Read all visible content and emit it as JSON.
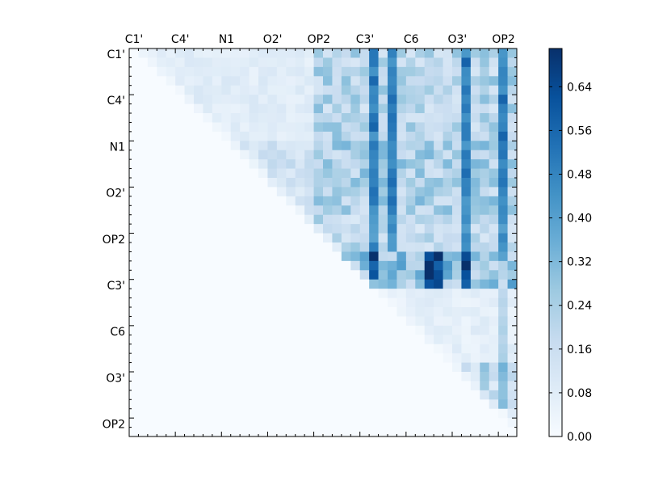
{
  "chart_data": {
    "type": "heatmap",
    "title": "",
    "xlabel": "",
    "ylabel": "",
    "x_tick_labels": [
      "C1'",
      "C4'",
      "N1",
      "O2'",
      "OP2",
      "C3'",
      "C6",
      "O3'",
      "OP2"
    ],
    "y_tick_labels": [
      "C1'",
      "C4'",
      "N1",
      "O2'",
      "OP2",
      "C3'",
      "C6",
      "O3'",
      "OP2"
    ],
    "matrix_size": 42,
    "upper_triangular": true,
    "colormap": "Blues",
    "vmin": 0.0,
    "vmax": 0.71,
    "colorbar_ticks": [
      "0.00",
      "0.08",
      "0.16",
      "0.24",
      "0.32",
      "0.40",
      "0.48",
      "0.56",
      "0.64"
    ],
    "colorbar_tick_values": [
      0.0,
      0.08,
      0.16,
      0.24,
      0.32,
      0.4,
      0.48,
      0.56,
      0.64
    ],
    "axis_ticks_position": "top",
    "row_bands": [
      {
        "rows": [
          0,
          9
        ],
        "left_region_value": 0.08,
        "right_region_base": 0.22,
        "hot_columns": [
          26,
          28,
          36,
          40
        ],
        "hot_value": 0.5
      },
      {
        "rows": [
          10,
          17
        ],
        "left_region_value": 0.14,
        "right_region_base": 0.24,
        "hot_columns": [
          26,
          28,
          36,
          40
        ],
        "hot_value": 0.48
      },
      {
        "rows": [
          18,
          21
        ],
        "left_region_value": 0.18,
        "right_region_base": 0.2,
        "hot_columns": [
          26,
          28,
          36,
          40
        ],
        "hot_value": 0.44
      },
      {
        "rows": [
          22,
          25
        ],
        "left_region_value": 0.0,
        "right_region_base": 0.3,
        "hot_columns": [
          23,
          26,
          32,
          33,
          36
        ],
        "hot_value": 0.66
      },
      {
        "rows": [
          26,
          33
        ],
        "left_region_value": 0.0,
        "right_region_base": 0.07,
        "hot_columns": [
          40
        ],
        "hot_value": 0.22
      },
      {
        "rows": [
          34,
          38
        ],
        "left_region_value": 0.0,
        "right_region_base": 0.16,
        "hot_columns": [
          38,
          40
        ],
        "hot_value": 0.3
      },
      {
        "rows": [
          39,
          41
        ],
        "left_region_value": 0.0,
        "right_region_base": 0.08,
        "hot_columns": [],
        "hot_value": 0.0
      }
    ]
  }
}
